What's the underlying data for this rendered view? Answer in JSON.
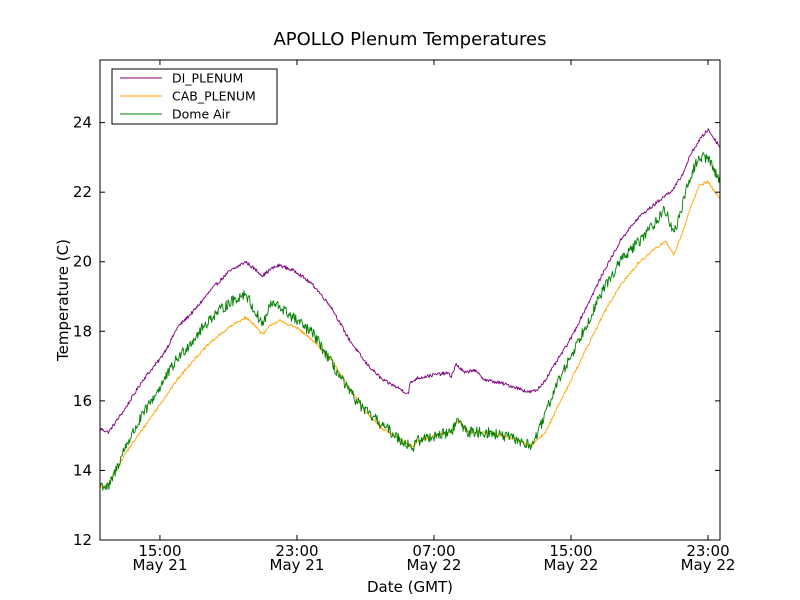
{
  "chart_data": {
    "type": "line",
    "title": "APOLLO Plenum Temperatures",
    "xlabel": "Date (GMT)",
    "ylabel": "Temperature (C)",
    "xlim": [
      11.5,
      47.7
    ],
    "ylim": [
      12,
      25.8
    ],
    "grid": false,
    "legend_position": "top-left",
    "x_unit": "hours since 2024-05-21 00:00 GMT",
    "x_ticks": [
      {
        "value": 15,
        "time": "15:00",
        "date": "May 21"
      },
      {
        "value": 23,
        "time": "23:00",
        "date": "May 21"
      },
      {
        "value": 31,
        "time": "07:00",
        "date": "May 22"
      },
      {
        "value": 39,
        "time": "15:00",
        "date": "May 22"
      },
      {
        "value": 47,
        "time": "23:00",
        "date": "May 22"
      }
    ],
    "y_ticks": [
      12,
      14,
      16,
      18,
      20,
      22,
      24
    ],
    "series": [
      {
        "name": "DI_PLENUM",
        "color": "#800080",
        "noise": 0.05,
        "points": [
          [
            11.5,
            15.2
          ],
          [
            12,
            15.1
          ],
          [
            13,
            15.8
          ],
          [
            14,
            16.6
          ],
          [
            15,
            17.2
          ],
          [
            15.5,
            17.6
          ],
          [
            16,
            18.1
          ],
          [
            17,
            18.6
          ],
          [
            18,
            19.2
          ],
          [
            19,
            19.7
          ],
          [
            20,
            20.0
          ],
          [
            20.5,
            19.8
          ],
          [
            21,
            19.6
          ],
          [
            21.5,
            19.8
          ],
          [
            22,
            19.9
          ],
          [
            23,
            19.7
          ],
          [
            24,
            19.3
          ],
          [
            24.5,
            19.0
          ],
          [
            25,
            18.7
          ],
          [
            26,
            17.8
          ],
          [
            27,
            17.1
          ],
          [
            28,
            16.6
          ],
          [
            29,
            16.35
          ],
          [
            29.5,
            16.2
          ],
          [
            29.6,
            16.5
          ],
          [
            30,
            16.65
          ],
          [
            31,
            16.75
          ],
          [
            31.8,
            16.8
          ],
          [
            32,
            16.7
          ],
          [
            32.3,
            17.05
          ],
          [
            32.8,
            16.8
          ],
          [
            33.3,
            16.9
          ],
          [
            34,
            16.6
          ],
          [
            35,
            16.5
          ],
          [
            36,
            16.35
          ],
          [
            36.5,
            16.25
          ],
          [
            37,
            16.3
          ],
          [
            37.5,
            16.6
          ],
          [
            38,
            17.0
          ],
          [
            39,
            17.8
          ],
          [
            40,
            18.8
          ],
          [
            41,
            19.8
          ],
          [
            42,
            20.7
          ],
          [
            43,
            21.3
          ],
          [
            44,
            21.7
          ],
          [
            45,
            22.1
          ],
          [
            45.5,
            22.5
          ],
          [
            46,
            23.1
          ],
          [
            46.5,
            23.5
          ],
          [
            47,
            23.8
          ],
          [
            47.7,
            23.3
          ]
        ]
      },
      {
        "name": "CAB_PLENUM",
        "color": "#ffa500",
        "noise": 0.04,
        "points": [
          [
            11.5,
            13.5
          ],
          [
            12,
            13.6
          ],
          [
            13,
            14.5
          ],
          [
            14,
            15.2
          ],
          [
            15,
            15.9
          ],
          [
            16,
            16.6
          ],
          [
            17,
            17.2
          ],
          [
            18,
            17.7
          ],
          [
            19,
            18.1
          ],
          [
            20,
            18.4
          ],
          [
            20.5,
            18.2
          ],
          [
            21,
            17.9
          ],
          [
            21.5,
            18.2
          ],
          [
            22,
            18.3
          ],
          [
            23,
            18.1
          ],
          [
            24,
            17.7
          ],
          [
            25,
            17.2
          ],
          [
            26,
            16.4
          ],
          [
            27,
            15.7
          ],
          [
            28,
            15.2
          ],
          [
            29,
            14.9
          ],
          [
            29.8,
            14.65
          ],
          [
            30,
            14.85
          ],
          [
            31,
            15.0
          ],
          [
            32,
            15.1
          ],
          [
            32.4,
            15.45
          ],
          [
            32.8,
            15.2
          ],
          [
            33,
            15.1
          ],
          [
            34,
            15.1
          ],
          [
            35,
            15.0
          ],
          [
            36,
            14.85
          ],
          [
            36.6,
            14.7
          ],
          [
            37,
            14.85
          ],
          [
            37.5,
            15.1
          ],
          [
            38,
            15.6
          ],
          [
            39,
            16.6
          ],
          [
            40,
            17.6
          ],
          [
            41,
            18.6
          ],
          [
            42,
            19.4
          ],
          [
            43,
            20.0
          ],
          [
            44,
            20.4
          ],
          [
            44.5,
            20.6
          ],
          [
            45,
            20.2
          ],
          [
            45.5,
            20.8
          ],
          [
            46,
            21.6
          ],
          [
            46.5,
            22.2
          ],
          [
            47,
            22.3
          ],
          [
            47.7,
            21.8
          ]
        ]
      },
      {
        "name": "Dome Air",
        "color": "#008000",
        "noise": 0.16,
        "points": [
          [
            11.5,
            13.6
          ],
          [
            12,
            13.5
          ],
          [
            13,
            14.7
          ],
          [
            14,
            15.6
          ],
          [
            15,
            16.4
          ],
          [
            16,
            17.2
          ],
          [
            17,
            17.8
          ],
          [
            18,
            18.4
          ],
          [
            19,
            18.8
          ],
          [
            20,
            19.1
          ],
          [
            20.5,
            18.6
          ],
          [
            21,
            18.2
          ],
          [
            21.5,
            18.8
          ],
          [
            22,
            18.7
          ],
          [
            23,
            18.3
          ],
          [
            24,
            17.9
          ],
          [
            25,
            17.1
          ],
          [
            26,
            16.3
          ],
          [
            27,
            15.7
          ],
          [
            28,
            15.3
          ],
          [
            29,
            14.9
          ],
          [
            29.8,
            14.65
          ],
          [
            30,
            14.85
          ],
          [
            31,
            15.0
          ],
          [
            32,
            15.1
          ],
          [
            32.4,
            15.45
          ],
          [
            32.8,
            15.2
          ],
          [
            33,
            15.1
          ],
          [
            34,
            15.1
          ],
          [
            35,
            15.0
          ],
          [
            36,
            14.85
          ],
          [
            36.6,
            14.7
          ],
          [
            37,
            15.0
          ],
          [
            37.5,
            15.6
          ],
          [
            38,
            16.3
          ],
          [
            39,
            17.3
          ],
          [
            40,
            18.3
          ],
          [
            41,
            19.3
          ],
          [
            42,
            20.1
          ],
          [
            43,
            20.6
          ],
          [
            44,
            21.2
          ],
          [
            44.5,
            21.5
          ],
          [
            45,
            20.8
          ],
          [
            45.5,
            21.6
          ],
          [
            46,
            22.5
          ],
          [
            46.5,
            23.0
          ],
          [
            47,
            23.0
          ],
          [
            47.7,
            22.3
          ]
        ]
      }
    ]
  }
}
